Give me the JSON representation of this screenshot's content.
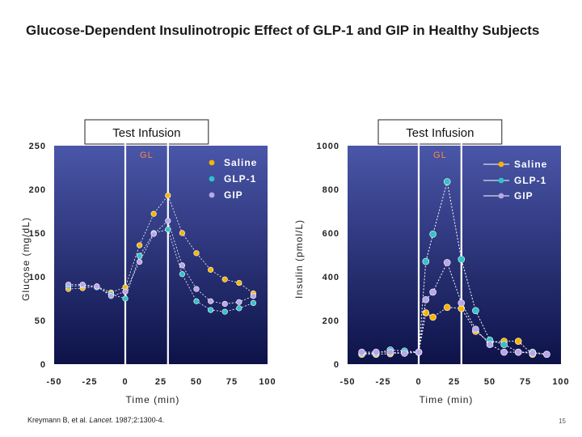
{
  "slide": {
    "title": "Glucose-Dependent Insulinotropic Effect of GLP-1 and GIP in Healthy Subjects",
    "citation_authors": "Kreymann B, et al. ",
    "citation_journal": "Lancet.",
    "citation_rest": " 1987;2:1300-4.",
    "page_number": "15"
  },
  "colors": {
    "plot_background_top": "#4a56a8",
    "plot_background_bottom": "#0d1248",
    "saline": "#f7b500",
    "glp1": "#2fc4c8",
    "gip": "#b9a6e8",
    "infusion_box": "#ffffff",
    "gl_label": "#ff8a3c"
  },
  "chart_data": [
    {
      "type": "line",
      "infusion_label": "Test Infusion",
      "infusion_window": [
        0,
        30
      ],
      "gl_label": "GL",
      "xlabel": "Time (min)",
      "ylabel": "Glucose (mg/dL)",
      "xlim": [
        -50,
        100
      ],
      "ylim": [
        0,
        250
      ],
      "xticks": [
        "-50",
        "-25",
        "0",
        "25",
        "50",
        "75",
        "100"
      ],
      "yticks": [
        "0",
        "50",
        "100",
        "150",
        "200",
        "250"
      ],
      "legend_position": "top-right",
      "series": [
        {
          "name": "Saline",
          "color_key": "saline",
          "x": [
            -40,
            -30,
            -20,
            -10,
            0,
            10,
            20,
            30,
            40,
            50,
            60,
            70,
            80,
            90
          ],
          "y": [
            86,
            87,
            89,
            82,
            88,
            136,
            172,
            193,
            150,
            127,
            108,
            97,
            93,
            81
          ]
        },
        {
          "name": "GLP-1",
          "color_key": "glp1",
          "x": [
            -40,
            -30,
            -20,
            -10,
            0,
            10,
            20,
            30,
            40,
            50,
            60,
            70,
            80,
            90
          ],
          "y": [
            89,
            90,
            88,
            80,
            75,
            124,
            150,
            154,
            103,
            72,
            62,
            60,
            64,
            70
          ]
        },
        {
          "name": "GIP",
          "color_key": "gip",
          "x": [
            -40,
            -30,
            -20,
            -10,
            0,
            10,
            20,
            30,
            40,
            50,
            60,
            70,
            80,
            90
          ],
          "y": [
            91,
            91,
            89,
            78,
            83,
            117,
            149,
            164,
            113,
            86,
            72,
            69,
            71,
            78
          ]
        }
      ]
    },
    {
      "type": "line",
      "infusion_label": "Test Infusion",
      "infusion_window": [
        0,
        30
      ],
      "gl_label": "GL",
      "xlabel": "Time (min)",
      "ylabel": "Insulin (pmol/L)",
      "xlim": [
        -50,
        100
      ],
      "ylim": [
        0,
        1000
      ],
      "xticks": [
        "-50",
        "-25",
        "0",
        "25",
        "50",
        "75",
        "100"
      ],
      "yticks": [
        "0",
        "200",
        "400",
        "600",
        "800",
        "1000"
      ],
      "legend_position": "top-right",
      "series": [
        {
          "name": "Saline",
          "color_key": "saline",
          "x": [
            -40,
            -30,
            -20,
            -10,
            0,
            5,
            10,
            20,
            30,
            40,
            50,
            60,
            70,
            80
          ],
          "y": [
            45,
            45,
            48,
            52,
            55,
            235,
            215,
            260,
            255,
            150,
            100,
            105,
            105,
            45
          ]
        },
        {
          "name": "GLP-1",
          "color_key": "glp1",
          "x": [
            -40,
            -30,
            -20,
            -10,
            0,
            5,
            10,
            20,
            30,
            40,
            50,
            60,
            70,
            80,
            90
          ],
          "y": [
            50,
            50,
            65,
            60,
            55,
            470,
            595,
            835,
            480,
            245,
            110,
            90,
            55,
            55,
            45
          ]
        },
        {
          "name": "GIP",
          "color_key": "gip",
          "x": [
            -40,
            -30,
            -20,
            -10,
            0,
            5,
            10,
            20,
            30,
            40,
            50,
            60,
            70,
            80,
            90
          ],
          "y": [
            55,
            55,
            55,
            50,
            55,
            295,
            330,
            465,
            280,
            160,
            90,
            55,
            55,
            50,
            45
          ]
        }
      ]
    }
  ]
}
